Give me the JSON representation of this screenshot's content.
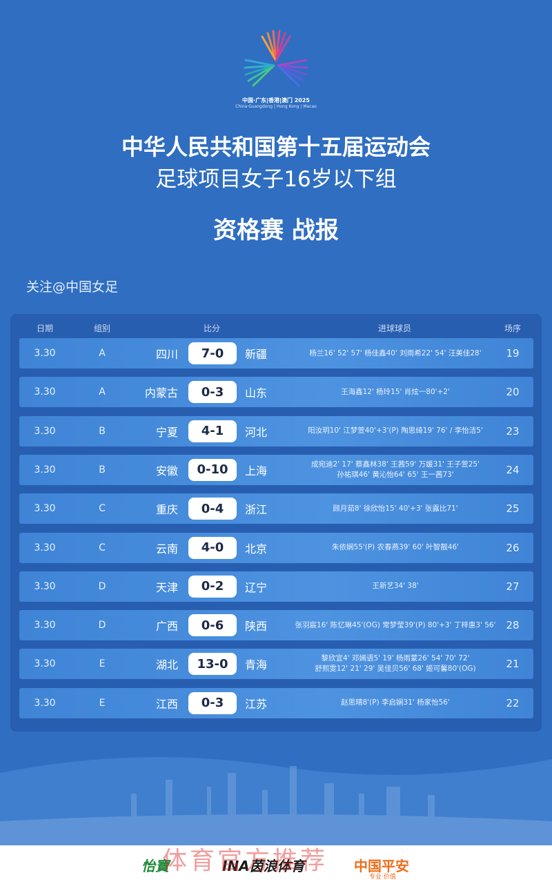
{
  "logo": {
    "text_cn": "中国·广东|香港|澳门 2025",
    "text_en": "China·Guangdong | Hong Kong | Macao"
  },
  "header": {
    "title": "中华人民共和国第十五届运动会",
    "subtitle": "足球项目女子16岁以下组",
    "report": "资格赛 战报",
    "follow": "关注@中国女足"
  },
  "table": {
    "columns": [
      "日期",
      "组别",
      "比分",
      "进球球员",
      "场序"
    ],
    "rows": [
      {
        "date": "3.30",
        "group": "A",
        "home": "四川",
        "score": "7-0",
        "away": "新疆",
        "scorers": [
          "杨兰16' 52' 57' 杨佳鑫40' 刘雨希22' 54' 汪美佳28'"
        ],
        "match": "19"
      },
      {
        "date": "3.30",
        "group": "A",
        "home": "内蒙古",
        "score": "0-3",
        "away": "山东",
        "scorers": [
          "王海鑫12' 杨玲15' 肖炫一80'+2'"
        ],
        "match": "20"
      },
      {
        "date": "3.30",
        "group": "B",
        "home": "宁夏",
        "score": "4-1",
        "away": "河北",
        "scorers": [
          "阳汝玥10' 江梦萱40'+3'(P) 陶思绮19' 76' / 李怡洁5'"
        ],
        "match": "23"
      },
      {
        "date": "3.30",
        "group": "B",
        "home": "安徽",
        "score": "0-10",
        "away": "上海",
        "scorers": [
          "成宛迪2' 17' 蔡鑫林38' 王茜59' 万媛31' 王子萱25'",
          "孙祐琪46' 黄沁怡64' 65' 王一茜73'"
        ],
        "match": "24"
      },
      {
        "date": "3.30",
        "group": "C",
        "home": "重庆",
        "score": "0-4",
        "away": "浙江",
        "scorers": [
          "顾月茹8' 徐欣怡15' 40'+3' 张露比71'"
        ],
        "match": "25"
      },
      {
        "date": "3.30",
        "group": "C",
        "home": "云南",
        "score": "4-0",
        "away": "北京",
        "scorers": [
          "朱依娴55'(P) 农春燕39' 60' 叶智靓46'"
        ],
        "match": "26"
      },
      {
        "date": "3.30",
        "group": "D",
        "home": "天津",
        "score": "0-2",
        "away": "辽宁",
        "scorers": [
          "王新艺34' 38'"
        ],
        "match": "27"
      },
      {
        "date": "3.30",
        "group": "D",
        "home": "广西",
        "score": "0-6",
        "away": "陕西",
        "scorers": [
          "张羽宸16' 陈忆琳45'(OG) 常梦莹39'(P) 80'+3' 丁梓惠3' 56'"
        ],
        "match": "28"
      },
      {
        "date": "3.30",
        "group": "E",
        "home": "湖北",
        "score": "13-0",
        "away": "青海",
        "scorers": [
          "黎欣宜4' 邓嫣语5' 19' 杨雨蒙26' 54' 70' 72'",
          "舒熙雯12' 21' 29' 吴佳贝56' 68' 姬可馨80'(OG)"
        ],
        "match": "21"
      },
      {
        "date": "3.30",
        "group": "E",
        "home": "江西",
        "score": "0-3",
        "away": "江苏",
        "scorers": [
          "赵思晴8'(P) 李启娴31' 杨家怡56'"
        ],
        "match": "22"
      }
    ]
  },
  "footer": {
    "sponsors": [
      "怡寶",
      "INA茵浪体育",
      "中国平安"
    ],
    "tagline": "专业·价值",
    "watermark": "体育官方推荐"
  }
}
